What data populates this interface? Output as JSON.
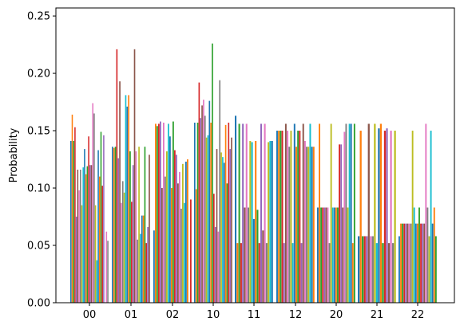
{
  "chart_data": {
    "type": "bar",
    "title": "",
    "xlabel": "",
    "ylabel": "Probability",
    "ylim": [
      0,
      0.257
    ],
    "yticks": [
      0.0,
      0.05,
      0.1,
      0.15,
      0.2,
      0.25
    ],
    "ytick_labels": [
      "0.00",
      "0.05",
      "0.10",
      "0.15",
      "0.20",
      "0.25"
    ],
    "categories": [
      "00",
      "01",
      "02",
      "10",
      "11",
      "12",
      "20",
      "21",
      "22"
    ],
    "grid": false,
    "legend": "none",
    "palette": [
      "#1f77b4",
      "#ff7f0e",
      "#2ca02c",
      "#d62728",
      "#9467bd",
      "#8c564b",
      "#e377c2",
      "#7f7f7f",
      "#bcbd22",
      "#17becf"
    ],
    "groups": [
      [
        0.141,
        0.164,
        0.141,
        0.153,
        0.075,
        0.116,
        0.098,
        0.116,
        0.085,
        0.118,
        0.134,
        0.112,
        0.119,
        0.145,
        0.12,
        0.12,
        0.174,
        0.165,
        0.085,
        0.037,
        0.133,
        0.11,
        0.149,
        0.102,
        0.146,
        0.0,
        0.062,
        0.054
      ],
      [
        0.136,
        0.135,
        0.136,
        0.221,
        0.126,
        0.193,
        0.087,
        0.106,
        0.096,
        0.181,
        0.171,
        0.181,
        0.132,
        0.088,
        0.12,
        0.221,
        0.132,
        0.055,
        0.136,
        0.06,
        0.076,
        0.076,
        0.136,
        0.052,
        0.066,
        0.129
      ],
      [
        0.063,
        0.156,
        0.154,
        0.156,
        0.158,
        0.1,
        0.157,
        0.11,
        0.132,
        0.156,
        0.145,
        0.1,
        0.158,
        0.133,
        0.129,
        0.104,
        0.114,
        0.082,
        0.121,
        0.087,
        0.123,
        0.125,
        0.0,
        0.09
      ],
      [
        0.157,
        0.099,
        0.157,
        0.192,
        0.161,
        0.172,
        0.177,
        0.163,
        0.144,
        0.146,
        0.176,
        0.157,
        0.226,
        0.095,
        0.066,
        0.134,
        0.062,
        0.194,
        0.131,
        0.127,
        0.122,
        0.155,
        0.104,
        0.157,
        0.134,
        0.144
      ],
      [
        0.163,
        0.052,
        0.156,
        0.052,
        0.156,
        0.083,
        0.156,
        0.083,
        0.141,
        0.14,
        0.073,
        0.141,
        0.081,
        0.052,
        0.156,
        0.063,
        0.156,
        0.052,
        0.14,
        0.141,
        0.141
      ],
      [
        0.15,
        0.15,
        0.15,
        0.15,
        0.052,
        0.156,
        0.15,
        0.136,
        0.15,
        0.052,
        0.156,
        0.136,
        0.15,
        0.15,
        0.052,
        0.156,
        0.141,
        0.136,
        0.136,
        0.156,
        0.136,
        0.136
      ],
      [
        0.083,
        0.156,
        0.083,
        0.083,
        0.083,
        0.083,
        0.083,
        0.052,
        0.156,
        0.083,
        0.083,
        0.083,
        0.083,
        0.138,
        0.138,
        0.083,
        0.149,
        0.156,
        0.083,
        0.156,
        0.156,
        0.052,
        0.156
      ],
      [
        0.058,
        0.15,
        0.058,
        0.058,
        0.058,
        0.156,
        0.058,
        0.058,
        0.156,
        0.052,
        0.152,
        0.156,
        0.052,
        0.15,
        0.152,
        0.052,
        0.15,
        0.052,
        0.15
      ],
      [
        0.058,
        0.069,
        0.069,
        0.069,
        0.069,
        0.069,
        0.069,
        0.069,
        0.15,
        0.083,
        0.069,
        0.069,
        0.083,
        0.069,
        0.069,
        0.069,
        0.156,
        0.083,
        0.058,
        0.15,
        0.069,
        0.083,
        0.058
      ]
    ]
  }
}
